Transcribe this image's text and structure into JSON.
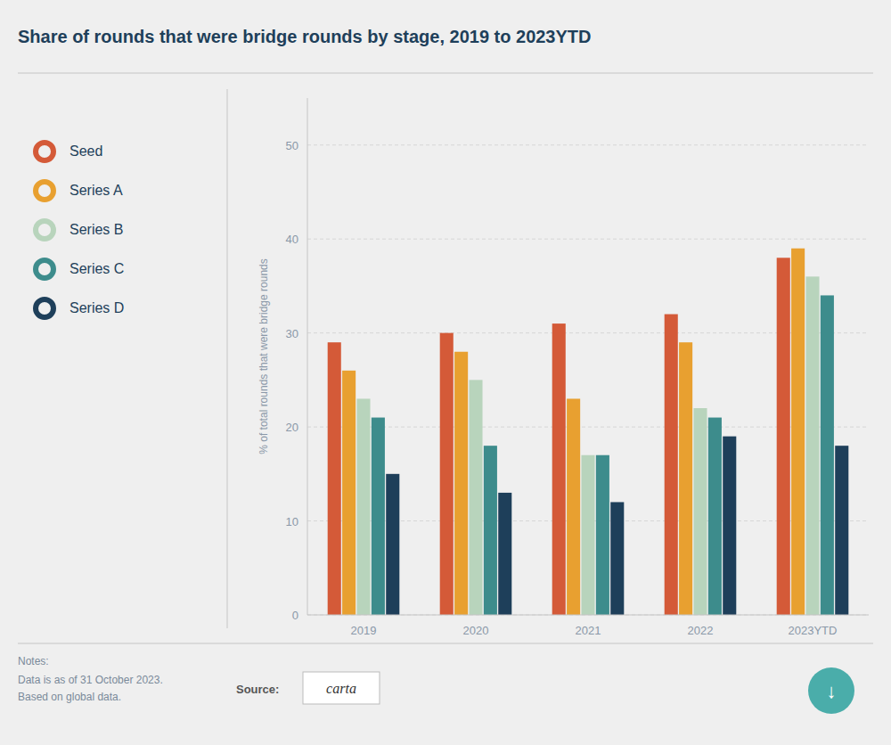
{
  "chart_data": {
    "type": "bar",
    "title": "Share of rounds that were bridge rounds by stage, 2019 to 2023YTD",
    "y_label": "% of total rounds that were bridge rounds",
    "categories": [
      "2019",
      "2020",
      "2021",
      "2022",
      "2023YTD"
    ],
    "series": [
      {
        "name": "Seed",
        "color": "#d45a38",
        "values": [
          29,
          30,
          31,
          32,
          38
        ]
      },
      {
        "name": "Series A",
        "color": "#e8a030",
        "values": [
          26,
          28,
          23,
          29,
          39
        ]
      },
      {
        "name": "Series B",
        "color": "#b8d4bc",
        "values": [
          23,
          25,
          17,
          22,
          36
        ]
      },
      {
        "name": "Series C",
        "color": "#3d8c8c",
        "values": [
          21,
          18,
          17,
          21,
          34
        ]
      },
      {
        "name": "Series D",
        "color": "#1e3f5a",
        "values": [
          15,
          13,
          12,
          19,
          18
        ]
      }
    ],
    "ylim": [
      0,
      55
    ],
    "yticks": [
      0,
      10,
      20,
      30,
      40,
      50
    ],
    "grid": true,
    "legend": "left",
    "annotations": [
      "Notes:",
      "Data is as of 31 October 2023.",
      "Based on global data.",
      "Source:",
      "carta",
      "↓"
    ]
  }
}
